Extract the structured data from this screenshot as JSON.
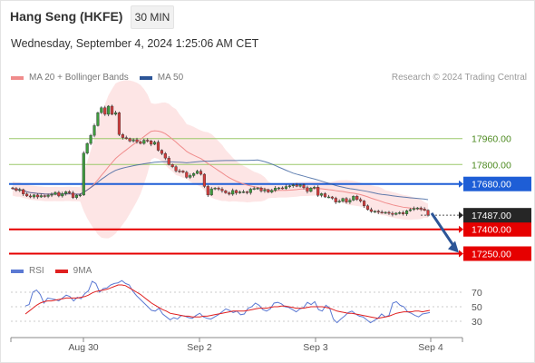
{
  "header": {
    "instrument": "Hang Seng (HKFE)",
    "interval": "30 MIN",
    "datetime": "Wednesday, September 4, 2024 1:25:06 AM CET"
  },
  "legend": {
    "items": [
      {
        "label": "MA 20 + Bollinger Bands",
        "color": "#f08c8c"
      },
      {
        "label": "MA 50",
        "color": "#2c5597"
      }
    ],
    "research": "Research © 2024 Trading Central"
  },
  "chart_data": [
    {
      "type": "candlestick",
      "title": "",
      "x_ticks": [
        "Aug 30",
        "Sep 2",
        "Sep 3",
        "Sep 4"
      ],
      "ylim": [
        17180,
        18300
      ],
      "levels": [
        {
          "value": 17960.0,
          "label": "17960.00",
          "kind": "resistance",
          "color": "#9cc96b"
        },
        {
          "value": 17800.0,
          "label": "17800.00",
          "kind": "resistance",
          "color": "#9cc96b"
        },
        {
          "value": 17680.0,
          "label": "17680.00",
          "kind": "pivot",
          "color": "#1e5ed6"
        },
        {
          "value": 17400.0,
          "label": "17400.00",
          "kind": "support",
          "color": "#e60000"
        },
        {
          "value": 17250.0,
          "label": "17250.00",
          "kind": "support",
          "color": "#e60000"
        }
      ],
      "last_price": {
        "value": 17487.0,
        "label": "17487.00"
      },
      "series": [
        {
          "name": "MA 20 + Bollinger Bands",
          "color": "#f08c8c"
        },
        {
          "name": "MA 50",
          "color": "#2c5597"
        }
      ],
      "candles_close": [
        17652,
        17640,
        17645,
        17618,
        17606,
        17600,
        17612,
        17600,
        17608,
        17603,
        17611,
        17616,
        17628,
        17606,
        17620,
        17632,
        17625,
        17596,
        17611,
        17612,
        17870,
        17930,
        17980,
        18040,
        18120,
        18150,
        18110,
        18160,
        18110,
        18120,
        17985,
        17966,
        17960,
        17945,
        17953,
        17941,
        17930,
        17950,
        17946,
        17925,
        17938,
        17888,
        17868,
        17840,
        17800,
        17786,
        17761,
        17760,
        17752,
        17721,
        17732,
        17745,
        17759,
        17740,
        17665,
        17612,
        17650,
        17655,
        17648,
        17638,
        17625,
        17617,
        17640,
        17625,
        17631,
        17632,
        17626,
        17648,
        17652,
        17655,
        17637,
        17645,
        17630,
        17641,
        17655,
        17656,
        17652,
        17664,
        17669,
        17674,
        17666,
        17674,
        17657,
        17634,
        17655,
        17660,
        17610,
        17620,
        17600,
        17600,
        17592,
        17568,
        17573,
        17590,
        17568,
        17580,
        17604,
        17584,
        17575,
        17545,
        17522,
        17510,
        17512,
        17506,
        17502,
        17505,
        17499,
        17492,
        17500,
        17503,
        17495,
        17515,
        17522,
        17529,
        17532,
        17525,
        17518,
        17487
      ],
      "projection": {
        "from": 17500,
        "to": 17250
      }
    },
    {
      "type": "line",
      "title": "",
      "ylim": [
        10,
        90
      ],
      "y_ticks": [
        70,
        50,
        30
      ],
      "series": [
        {
          "name": "RSI",
          "color": "#5b79d3",
          "values": [
            51,
            53,
            70,
            73,
            67,
            55,
            62,
            61,
            60,
            58,
            62,
            66,
            64,
            58,
            63,
            61,
            68,
            72,
            85,
            82,
            70,
            75,
            76,
            80,
            82,
            83,
            86,
            82,
            80,
            71,
            65,
            60,
            55,
            50,
            45,
            44,
            48,
            40,
            36,
            32,
            35,
            33,
            38,
            37,
            35,
            34,
            38,
            41,
            36,
            34,
            33,
            36,
            39,
            43,
            47,
            45,
            42,
            44,
            39,
            40,
            48,
            50,
            55,
            52,
            46,
            44,
            47,
            55,
            56,
            54,
            50,
            49,
            46,
            43,
            47,
            49,
            56,
            53,
            57,
            46,
            44,
            52,
            48,
            33,
            28,
            33,
            37,
            42,
            44,
            40,
            37,
            36,
            32,
            28,
            31,
            34,
            40,
            36,
            38,
            55,
            57,
            52,
            50,
            43,
            41,
            38,
            36,
            40,
            41,
            42
          ]
        },
        {
          "name": "9MA",
          "color": "#e02020",
          "values": [
            40,
            44,
            48,
            52,
            55,
            57,
            58,
            58,
            59,
            60,
            61,
            62,
            62,
            62,
            62,
            63,
            64,
            66,
            69,
            71,
            72,
            73,
            74,
            76,
            78,
            80,
            80,
            79,
            76,
            73,
            70,
            67,
            63,
            59,
            55,
            52,
            49,
            46,
            44,
            41,
            40,
            39,
            38,
            37,
            37,
            36,
            36,
            36,
            37,
            37,
            38,
            39,
            40,
            41,
            42,
            43,
            44,
            44,
            44,
            44,
            45,
            46,
            47,
            48,
            48,
            48,
            49,
            50,
            50,
            51,
            51,
            50,
            49,
            48,
            48,
            48,
            49,
            50,
            50,
            50,
            50,
            49,
            48,
            46,
            44,
            43,
            42,
            41,
            41,
            40,
            39,
            38,
            37,
            36,
            35,
            34,
            35,
            36,
            37,
            39,
            41,
            42,
            43,
            43,
            43,
            44,
            44,
            43,
            44,
            45
          ]
        }
      ]
    }
  ],
  "indicator_legend": {
    "items": [
      {
        "label": "RSI",
        "color": "#5b79d3"
      },
      {
        "label": "9MA",
        "color": "#e02020"
      }
    ]
  }
}
